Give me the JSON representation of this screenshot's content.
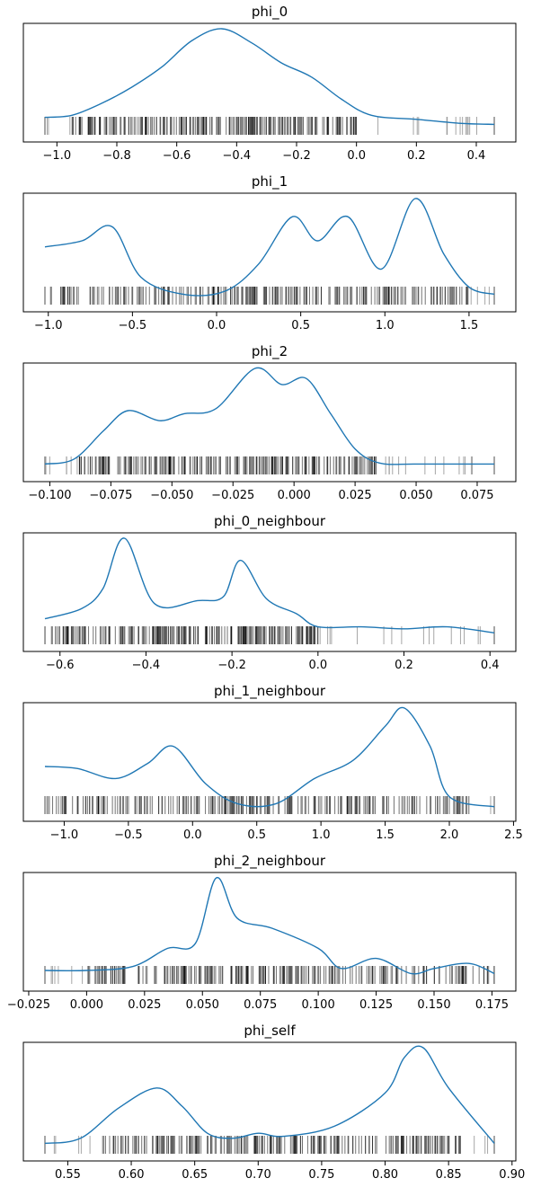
{
  "chart_data": [
    {
      "type": "line",
      "title": "phi_0",
      "xlim": [
        -1.04,
        0.46
      ],
      "xticks": [
        "−1.0",
        "−0.8",
        "−0.6",
        "−0.4",
        "−0.2",
        "0.0",
        "0.2",
        "0.4"
      ],
      "xtick_values": [
        -1.0,
        -0.8,
        -0.6,
        -0.4,
        -0.2,
        0.0,
        0.2,
        0.4
      ],
      "kde": {
        "x": [
          -1.04,
          -0.95,
          -0.85,
          -0.75,
          -0.65,
          -0.55,
          -0.45,
          -0.35,
          -0.25,
          -0.15,
          -0.05,
          0.05,
          0.2,
          0.35,
          0.46
        ],
        "y": [
          0.12,
          0.14,
          0.26,
          0.42,
          0.62,
          0.88,
          1.0,
          0.86,
          0.66,
          0.52,
          0.3,
          0.14,
          0.1,
          0.06,
          0.05
        ]
      },
      "rug_range": [
        -1.04,
        0.46
      ],
      "rug_dense_range": [
        -0.95,
        0.0
      ]
    },
    {
      "type": "line",
      "title": "phi_1",
      "xlim": [
        -1.02,
        1.65
      ],
      "xticks": [
        "−1.0",
        "−0.5",
        "0.0",
        "0.5",
        "1.0",
        "1.5"
      ],
      "xtick_values": [
        -1.0,
        -0.5,
        0.0,
        0.5,
        1.0,
        1.5
      ],
      "kde": {
        "x": [
          -1.02,
          -0.8,
          -0.62,
          -0.45,
          -0.2,
          0.05,
          0.25,
          0.45,
          0.6,
          0.78,
          0.98,
          1.18,
          1.35,
          1.5,
          1.65
        ],
        "y": [
          0.52,
          0.58,
          0.72,
          0.22,
          0.05,
          0.08,
          0.35,
          0.82,
          0.58,
          0.82,
          0.3,
          1.0,
          0.45,
          0.12,
          0.05
        ]
      },
      "rug_range": [
        -1.02,
        1.65
      ],
      "rug_dense_range": [
        -1.0,
        1.5
      ]
    },
    {
      "type": "line",
      "title": "phi_2",
      "xlim": [
        -0.102,
        0.082
      ],
      "xticks": [
        "−0.100",
        "−0.075",
        "−0.050",
        "−0.025",
        "0.000",
        "0.025",
        "0.050",
        "0.075"
      ],
      "xtick_values": [
        -0.1,
        -0.075,
        -0.05,
        -0.025,
        0.0,
        0.025,
        0.05,
        0.075
      ],
      "kde": {
        "x": [
          -0.102,
          -0.09,
          -0.078,
          -0.068,
          -0.055,
          -0.045,
          -0.032,
          -0.016,
          -0.005,
          0.005,
          0.015,
          0.025,
          0.035,
          0.05,
          0.082
        ],
        "y": [
          0.05,
          0.1,
          0.38,
          0.58,
          0.48,
          0.55,
          0.6,
          1.0,
          0.84,
          0.9,
          0.55,
          0.2,
          0.06,
          0.05,
          0.05
        ]
      },
      "rug_range": [
        -0.102,
        0.082
      ],
      "rug_dense_range": [
        -0.088,
        0.034
      ]
    },
    {
      "type": "line",
      "title": "phi_0_neighbour",
      "xlim": [
        -0.635,
        0.41
      ],
      "xticks": [
        "−0.6",
        "−0.4",
        "−0.2",
        "0.0",
        "0.2",
        "0.4"
      ],
      "xtick_values": [
        -0.6,
        -0.4,
        -0.2,
        0.0,
        0.2,
        0.4
      ],
      "kde": {
        "x": [
          -0.635,
          -0.55,
          -0.5,
          -0.45,
          -0.38,
          -0.28,
          -0.22,
          -0.18,
          -0.12,
          -0.05,
          0.0,
          0.1,
          0.2,
          0.3,
          0.41
        ],
        "y": [
          0.2,
          0.3,
          0.5,
          1.0,
          0.35,
          0.38,
          0.42,
          0.78,
          0.4,
          0.25,
          0.12,
          0.12,
          0.1,
          0.12,
          0.06
        ]
      },
      "rug_range": [
        -0.635,
        0.41
      ],
      "rug_dense_range": [
        -0.62,
        0.0
      ]
    },
    {
      "type": "line",
      "title": "phi_1_neighbour",
      "xlim": [
        -1.15,
        2.35
      ],
      "xticks": [
        "−1.0",
        "−0.5",
        "0.0",
        "0.5",
        "1.0",
        "1.5",
        "2.0",
        "2.5"
      ],
      "xtick_values": [
        -1.0,
        -0.5,
        0.0,
        0.5,
        1.0,
        1.5,
        2.0,
        2.5
      ],
      "kde": {
        "x": [
          -1.15,
          -0.9,
          -0.6,
          -0.35,
          -0.15,
          0.1,
          0.35,
          0.65,
          0.95,
          1.25,
          1.5,
          1.65,
          1.85,
          2.0,
          2.35
        ],
        "y": [
          0.42,
          0.4,
          0.3,
          0.45,
          0.62,
          0.25,
          0.05,
          0.05,
          0.3,
          0.48,
          0.82,
          1.0,
          0.62,
          0.12,
          0.02
        ]
      },
      "rug_range": [
        -1.15,
        2.35
      ],
      "rug_dense_range": [
        -1.1,
        2.15
      ]
    },
    {
      "type": "line",
      "title": "phi_2_neighbour",
      "xlim": [
        -0.018,
        0.176
      ],
      "xticks": [
        "−0.025",
        "0.000",
        "0.025",
        "0.050",
        "0.075",
        "0.100",
        "0.125",
        "0.150",
        "0.175"
      ],
      "xtick_values": [
        -0.025,
        0.0,
        0.025,
        0.05,
        0.075,
        0.1,
        0.125,
        0.15,
        0.175
      ],
      "kde": {
        "x": [
          -0.018,
          0.0,
          0.02,
          0.035,
          0.047,
          0.056,
          0.065,
          0.08,
          0.1,
          0.11,
          0.125,
          0.14,
          0.15,
          0.165,
          0.176
        ],
        "y": [
          0.08,
          0.08,
          0.12,
          0.3,
          0.35,
          1.0,
          0.6,
          0.5,
          0.3,
          0.1,
          0.2,
          0.05,
          0.1,
          0.15,
          0.05
        ]
      },
      "rug_range": [
        -0.018,
        0.176
      ],
      "rug_dense_range": [
        0.0,
        0.175
      ]
    },
    {
      "type": "line",
      "title": "phi_self",
      "xlim": [
        0.532,
        0.886
      ],
      "xticks": [
        "0.55",
        "0.60",
        "0.65",
        "0.70",
        "0.75",
        "0.80",
        "0.85",
        "0.90"
      ],
      "xtick_values": [
        0.55,
        0.6,
        0.65,
        0.7,
        0.75,
        0.8,
        0.85,
        0.9
      ],
      "kde": {
        "x": [
          0.532,
          0.56,
          0.59,
          0.62,
          0.64,
          0.66,
          0.68,
          0.7,
          0.72,
          0.76,
          0.8,
          0.815,
          0.83,
          0.85,
          0.886
        ],
        "y": [
          0.05,
          0.1,
          0.4,
          0.6,
          0.42,
          0.15,
          0.1,
          0.15,
          0.12,
          0.22,
          0.55,
          0.9,
          1.0,
          0.6,
          0.05
        ]
      },
      "rug_range": [
        0.532,
        0.886
      ],
      "rug_dense_range": [
        0.575,
        0.86
      ]
    }
  ]
}
